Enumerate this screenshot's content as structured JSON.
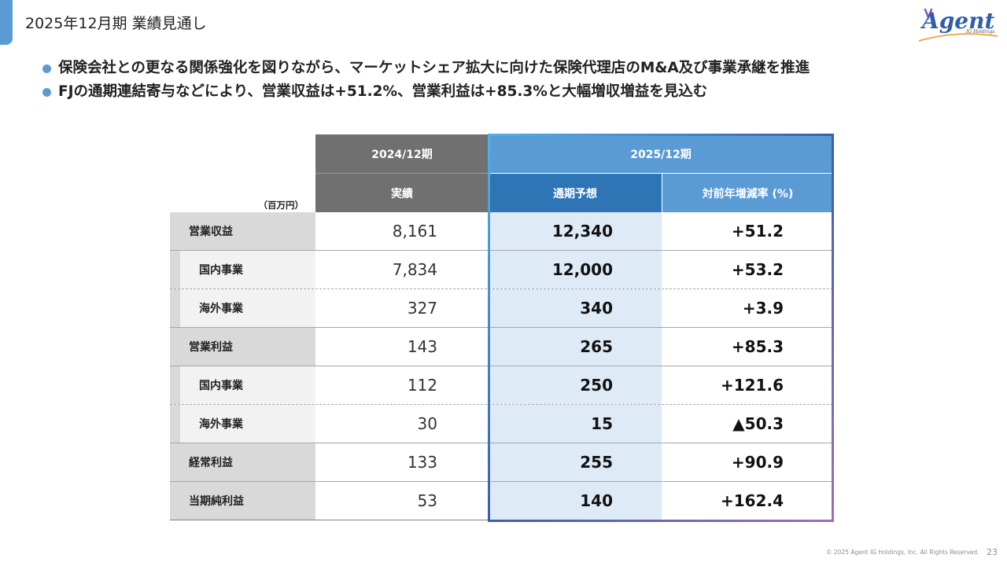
{
  "header": {
    "title": "2025年12月期 業績見通し",
    "logo_text": "Agent",
    "logo_subtext": "IG Holdings"
  },
  "bullets": [
    "保険会社との更なる関係強化を図りながら、マーケットシェア拡大に向けた保険代理店のM&A及び事業承継を推進",
    "FJの通期連結寄与などにより、営業収益は+51.2%、営業利益は+85.3%と大幅増収増益を見込む"
  ],
  "table": {
    "unit": "（百万円）",
    "period_prev": "2024/12期",
    "period_next": "2025/12期",
    "col_actual": "実績",
    "col_forecast": "通期予想",
    "col_change": "対前年増減率 (%)",
    "rows": [
      {
        "label": "営業収益",
        "actual": "8,161",
        "forecast": "12,340",
        "change": "+51.2"
      },
      {
        "label": "国内事業",
        "actual": "7,834",
        "forecast": "12,000",
        "change": "+53.2"
      },
      {
        "label": "海外事業",
        "actual": "327",
        "forecast": "340",
        "change": "+3.9"
      },
      {
        "label": "営業利益",
        "actual": "143",
        "forecast": "265",
        "change": "+85.3"
      },
      {
        "label": "国内事業",
        "actual": "112",
        "forecast": "250",
        "change": "+121.6"
      },
      {
        "label": "海外事業",
        "actual": "30",
        "forecast": "15",
        "change": "▲50.3"
      },
      {
        "label": "経常利益",
        "actual": "133",
        "forecast": "255",
        "change": "+90.9"
      },
      {
        "label": "当期純利益",
        "actual": "53",
        "forecast": "140",
        "change": "+162.4"
      }
    ]
  },
  "footer": {
    "copyright": "© 2025 Agent IG Holdings, Inc. All Rights Reserved.",
    "page_number": "23"
  },
  "colors": {
    "accent": "#5b9bd5",
    "header_gray": "#707070",
    "header_blue_light": "#5b9bd5",
    "header_blue_dark": "#2e75b6",
    "forecast_fill": "#deebf7",
    "logo_blue": "#2f5fa8",
    "logo_purple": "#8a55b4",
    "logo_orange": "#f0a040"
  }
}
